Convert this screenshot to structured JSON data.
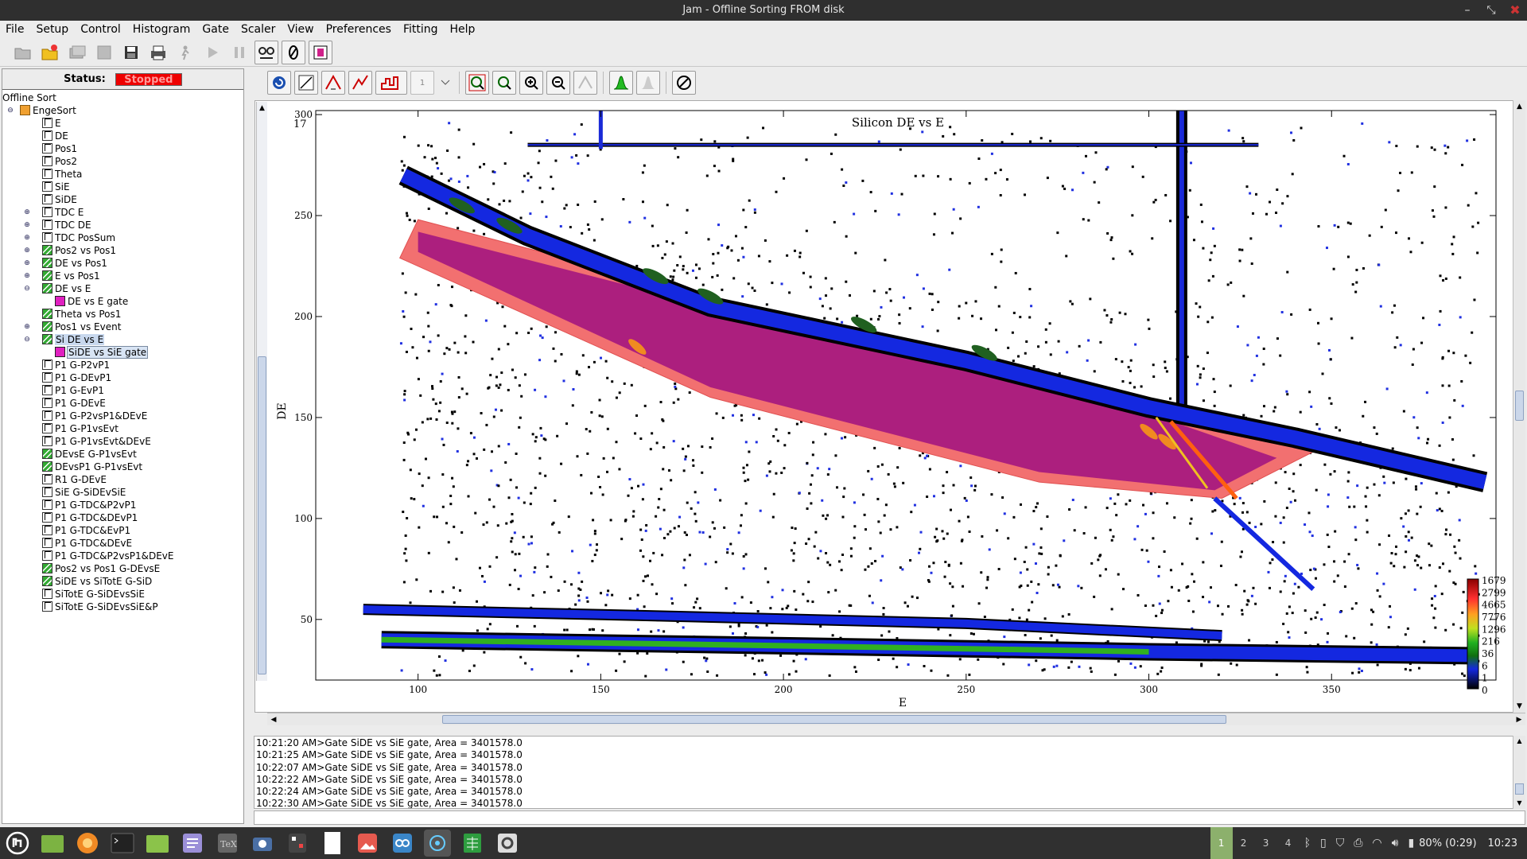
{
  "window": {
    "title": "Jam - Offline Sorting FROM disk"
  },
  "menu": [
    "File",
    "Setup",
    "Control",
    "Histogram",
    "Gate",
    "Scaler",
    "View",
    "Preferences",
    "Fitting",
    "Help"
  ],
  "status": {
    "label": "Status:",
    "value": "Stopped"
  },
  "tree": {
    "root": "Offline Sort",
    "group": "EngeSort",
    "items": [
      {
        "label": "E",
        "type": "1d"
      },
      {
        "label": "DE",
        "type": "1d"
      },
      {
        "label": "Pos1",
        "type": "1d"
      },
      {
        "label": "Pos2",
        "type": "1d"
      },
      {
        "label": "Theta",
        "type": "1d"
      },
      {
        "label": "SiE",
        "type": "1d"
      },
      {
        "label": "SiDE",
        "type": "1d"
      },
      {
        "label": "TDC E",
        "type": "1d",
        "expander": true
      },
      {
        "label": "TDC DE",
        "type": "1d",
        "expander": true
      },
      {
        "label": "TDC PosSum",
        "type": "1d",
        "expander": true
      },
      {
        "label": "Pos2 vs Pos1",
        "type": "2d",
        "expander": true
      },
      {
        "label": "DE vs Pos1",
        "type": "2d",
        "expander": true
      },
      {
        "label": "E vs Pos1",
        "type": "2d",
        "expander": true
      },
      {
        "label": "DE vs E",
        "type": "2d",
        "expanded": true
      },
      {
        "label": "DE vs E gate",
        "type": "gate"
      },
      {
        "label": "Theta vs Pos1",
        "type": "2d"
      },
      {
        "label": "Pos1 vs Event",
        "type": "2d",
        "expander": true
      },
      {
        "label": "Si DE vs E",
        "type": "2d",
        "expanded": true,
        "selected": true
      },
      {
        "label": "SiDE vs SiE gate",
        "type": "gate",
        "selected": true
      },
      {
        "label": "P1 G-P2vP1",
        "type": "1d"
      },
      {
        "label": "P1 G-DEvP1",
        "type": "1d"
      },
      {
        "label": "P1 G-EvP1",
        "type": "1d"
      },
      {
        "label": "P1 G-DEvE",
        "type": "1d"
      },
      {
        "label": "P1 G-P2vsP1&DEvE",
        "type": "1d"
      },
      {
        "label": "P1 G-P1vsEvt",
        "type": "1d"
      },
      {
        "label": "P1 G-P1vsEvt&DEvE",
        "type": "1d"
      },
      {
        "label": "DEvsE G-P1vsEvt",
        "type": "2d"
      },
      {
        "label": "DEvsP1 G-P1vsEvt",
        "type": "2d"
      },
      {
        "label": "R1 G-DEvE",
        "type": "1d"
      },
      {
        "label": "SiE G-SiDEvSiE",
        "type": "1d"
      },
      {
        "label": "P1 G-TDC&P2vP1",
        "type": "1d"
      },
      {
        "label": "P1 G-TDC&DEvP1",
        "type": "1d"
      },
      {
        "label": "P1 G-TDC&EvP1",
        "type": "1d"
      },
      {
        "label": "P1 G-TDC&DEvE",
        "type": "1d"
      },
      {
        "label": "P1 G-TDC&P2vsP1&DEvE",
        "type": "1d"
      },
      {
        "label": "Pos2 vs Pos1 G-DEvsE",
        "type": "2d"
      },
      {
        "label": "SiDE vs SiTotE G-SiD",
        "type": "2d"
      },
      {
        "label": "SiTotE G-SiDEvsSiE",
        "type": "1d"
      },
      {
        "label": "SiTotE G-SiDEvsSiE&P",
        "type": "1d"
      }
    ]
  },
  "toolbar2": {
    "counter_value": "1"
  },
  "plot": {
    "number": "17",
    "title": "Silicon DE vs E",
    "xlabel": "E",
    "ylabel": "DE",
    "xticks": [
      "100",
      "150",
      "200",
      "250",
      "300",
      "350"
    ],
    "yticks": [
      "50",
      "100",
      "150",
      "200",
      "250",
      "300"
    ],
    "scale_labels": [
      "1679",
      "2799",
      "4665",
      "7776",
      "1296",
      "216",
      "36",
      "6",
      "1",
      "0"
    ]
  },
  "chart_data": {
    "type": "heatmap",
    "title": "Silicon DE vs E",
    "xlabel": "E",
    "ylabel": "DE",
    "xlim": [
      72,
      395
    ],
    "ylim": [
      20,
      302
    ],
    "xticks": [
      100,
      150,
      200,
      250,
      300,
      350
    ],
    "yticks": [
      50,
      100,
      150,
      200,
      250,
      300
    ],
    "colorscale_labels": [
      "1679",
      "2799",
      "4665",
      "7776",
      "1296",
      "216",
      "36",
      "6",
      "1",
      "0"
    ],
    "bands": [
      {
        "name": "upper band",
        "points": [
          [
            96,
            270
          ],
          [
            130,
            240
          ],
          [
            180,
            205
          ],
          [
            250,
            178
          ],
          [
            300,
            155
          ],
          [
            340,
            140
          ],
          [
            392,
            118
          ]
        ]
      },
      {
        "name": "gated band",
        "points": [
          [
            100,
            232
          ],
          [
            170,
            195
          ],
          [
            250,
            155
          ],
          [
            300,
            133
          ],
          [
            340,
            118
          ]
        ]
      },
      {
        "name": "low band 1",
        "points": [
          [
            85,
            55
          ],
          [
            160,
            52
          ],
          [
            250,
            48
          ],
          [
            320,
            42
          ]
        ]
      },
      {
        "name": "low band 2",
        "points": [
          [
            90,
            40
          ],
          [
            200,
            37
          ],
          [
            300,
            34
          ],
          [
            390,
            32
          ]
        ]
      },
      {
        "name": "vertical line",
        "points": [
          [
            309,
            120
          ],
          [
            309,
            302
          ]
        ]
      },
      {
        "name": "horizontal line",
        "points": [
          [
            130,
            285
          ],
          [
            330,
            285
          ]
        ]
      }
    ],
    "gate_polygon": [
      [
        95,
        229
      ],
      [
        100,
        248
      ],
      [
        180,
        210
      ],
      [
        260,
        178
      ],
      [
        300,
        160
      ],
      [
        345,
        133
      ],
      [
        320,
        110
      ],
      [
        270,
        118
      ],
      [
        180,
        160
      ]
    ]
  },
  "console": [
    "10:21:20 AM>Gate SiDE vs SiE gate, Area = 3401578.0",
    "10:21:25 AM>Gate SiDE vs SiE gate, Area = 3401578.0",
    "10:22:07 AM>Gate SiDE vs SiE gate, Area = 3401578.0",
    "10:22:22 AM>Gate SiDE vs SiE gate, Area = 3401578.0",
    "10:22:24 AM>Gate SiDE vs SiE gate, Area = 3401578.0",
    "10:22:30 AM>Gate SiDE vs SiE gate, Area = 3401578.0"
  ],
  "taskbar": {
    "workspaces": [
      "1",
      "2",
      "3",
      "4"
    ],
    "battery": "80% (0:29)",
    "clock": "10:23"
  },
  "colors": {
    "stopped": "#ee0000",
    "band_blue": "#1028d8",
    "gate_fill": "#f06060",
    "gate_inner": "#9a1080",
    "green_peak": "#3ad010"
  }
}
